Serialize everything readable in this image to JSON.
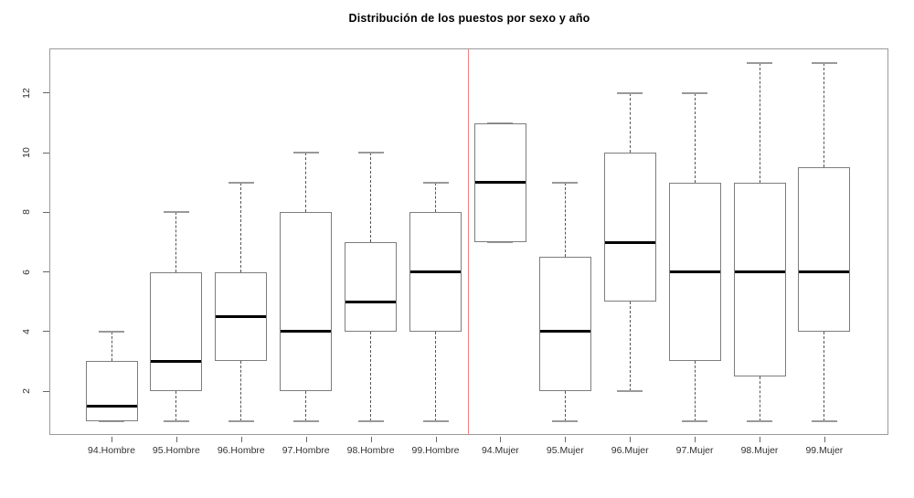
{
  "chart_data": {
    "type": "boxplot",
    "title": "Distribución de los puestos por sexo y año",
    "xlabel": "",
    "ylabel": "",
    "categories": [
      "94.Hombre",
      "95.Hombre",
      "96.Hombre",
      "97.Hombre",
      "98.Hombre",
      "99.Hombre",
      "94.Mujer",
      "95.Mujer",
      "96.Mujer",
      "97.Mujer",
      "98.Mujer",
      "99.Mujer"
    ],
    "boxes": [
      {
        "label": "94.Hombre",
        "whisker_low": 1,
        "q1": 1,
        "median": 1.5,
        "q3": 3,
        "whisker_high": 4
      },
      {
        "label": "95.Hombre",
        "whisker_low": 1,
        "q1": 2,
        "median": 3,
        "q3": 6,
        "whisker_high": 8
      },
      {
        "label": "96.Hombre",
        "whisker_low": 1,
        "q1": 3,
        "median": 4.5,
        "q3": 6,
        "whisker_high": 9
      },
      {
        "label": "97.Hombre",
        "whisker_low": 1,
        "q1": 2,
        "median": 4,
        "q3": 8,
        "whisker_high": 10
      },
      {
        "label": "98.Hombre",
        "whisker_low": 1,
        "q1": 4,
        "median": 5,
        "q3": 7,
        "whisker_high": 10
      },
      {
        "label": "99.Hombre",
        "whisker_low": 1,
        "q1": 4,
        "median": 6,
        "q3": 8,
        "whisker_high": 9
      },
      {
        "label": "94.Mujer",
        "whisker_low": 7,
        "q1": 7,
        "median": 9,
        "q3": 11,
        "whisker_high": 11
      },
      {
        "label": "95.Mujer",
        "whisker_low": 1,
        "q1": 2,
        "median": 4,
        "q3": 6.5,
        "whisker_high": 9
      },
      {
        "label": "96.Mujer",
        "whisker_low": 2,
        "q1": 5,
        "median": 7,
        "q3": 10,
        "whisker_high": 12
      },
      {
        "label": "97.Mujer",
        "whisker_low": 1,
        "q1": 3,
        "median": 6,
        "q3": 9,
        "whisker_high": 12
      },
      {
        "label": "98.Mujer",
        "whisker_low": 1,
        "q1": 2.5,
        "median": 6,
        "q3": 9,
        "whisker_high": 13
      },
      {
        "label": "99.Mujer",
        "whisker_low": 1,
        "q1": 4,
        "median": 6,
        "q3": 9.5,
        "whisker_high": 13
      }
    ],
    "yticks": [
      2,
      4,
      6,
      8,
      10,
      12
    ],
    "ylim": [
      0.5,
      13.5
    ],
    "grid": false,
    "legend": null,
    "group_divider": {
      "between": [
        "99.Hombre",
        "94.Mujer"
      ],
      "color": "#f08080"
    },
    "colors": {
      "box_border": "#7d7d7d",
      "median": "#000000",
      "whisker": "#555555",
      "cap": "#999999",
      "frame": "#9a9a9a",
      "tick": "#666666",
      "label": "#333333",
      "title": "#000000",
      "background": "#ffffff"
    }
  }
}
